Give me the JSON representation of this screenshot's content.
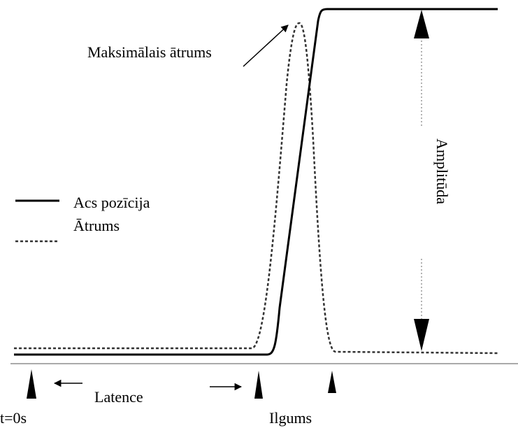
{
  "labels": {
    "peak_velocity": "Maksimālais ātrums",
    "amplitude": "Amplitūda",
    "latency": "Latence",
    "t0": "t=0s",
    "duration": "Ilgums"
  },
  "legend": {
    "position": "Acs pozīcija",
    "velocity": "Ātrums"
  }
}
